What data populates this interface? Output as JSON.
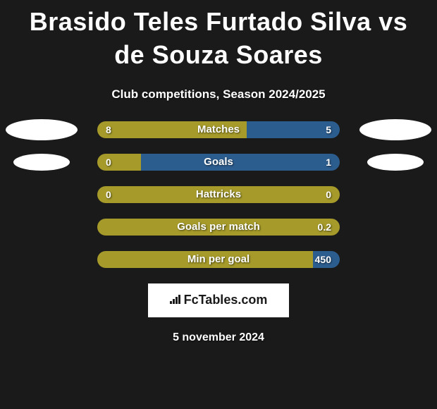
{
  "title": "Brasido Teles Furtado Silva vs de Souza Soares",
  "subtitle": "Club competitions, Season 2024/2025",
  "colors": {
    "left": "#a59a2a",
    "right": "#2c5d8f",
    "background": "#1a1a1a",
    "photo_bg": "#ffffff"
  },
  "rows": [
    {
      "label": "Matches",
      "left_val": "8",
      "right_val": "5",
      "left_pct": 61.5,
      "right_pct": 38.5,
      "show_photos": true
    },
    {
      "label": "Goals",
      "left_val": "0",
      "right_val": "1",
      "left_pct": 18,
      "right_pct": 82,
      "show_photos": true,
      "photo_small": true
    },
    {
      "label": "Hattricks",
      "left_val": "0",
      "right_val": "0",
      "left_pct": 100,
      "right_pct": 0,
      "show_photos": false
    },
    {
      "label": "Goals per match",
      "left_val": "",
      "right_val": "0.2",
      "left_pct": 100,
      "right_pct": 0,
      "show_photos": false
    },
    {
      "label": "Min per goal",
      "left_val": "",
      "right_val": "450",
      "left_pct": 89,
      "right_pct": 11,
      "show_photos": false
    }
  ],
  "logo": "FcTables.com",
  "date": "5 november 2024"
}
